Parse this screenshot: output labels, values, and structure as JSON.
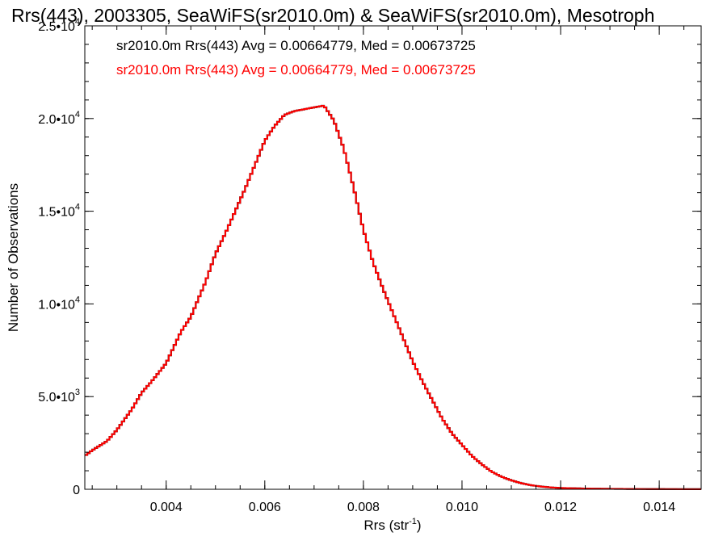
{
  "chart_data": {
    "type": "line",
    "title": "Rrs(443), 2003305, SeaWiFS(sr2010.0m) & SeaWiFS(sr2010.0m), Mesotroph",
    "xlabel_main": "Rrs (str",
    "xlabel_sup": "-1",
    "xlabel_end": ")",
    "ylabel": "Number of Observations",
    "xlim": [
      0.00235,
      0.01485
    ],
    "ylim": [
      0,
      25000
    ],
    "x_ticks": [
      {
        "value": 0.004,
        "label": "0.004"
      },
      {
        "value": 0.006,
        "label": "0.006"
      },
      {
        "value": 0.008,
        "label": "0.008"
      },
      {
        "value": 0.01,
        "label": "0.010"
      },
      {
        "value": 0.012,
        "label": "0.012"
      },
      {
        "value": 0.014,
        "label": "0.014"
      }
    ],
    "y_ticks": [
      {
        "value": 0,
        "mant": "0",
        "exp": ""
      },
      {
        "value": 5000,
        "mant": "5.0•10",
        "exp": "3"
      },
      {
        "value": 10000,
        "mant": "1.0•10",
        "exp": "4"
      },
      {
        "value": 15000,
        "mant": "1.5•10",
        "exp": "4"
      },
      {
        "value": 20000,
        "mant": "2.0•10",
        "exp": "4"
      },
      {
        "value": 25000,
        "mant": "2.5•10",
        "exp": "4"
      }
    ],
    "legend": [
      {
        "text": "sr2010.0m Rrs(443) Avg = 0.00664779, Med = 0.00673725",
        "color": "#000000"
      },
      {
        "text": "sr2010.0m Rrs(443) Avg = 0.00664779, Med = 0.00673725",
        "color": "#ff0000"
      }
    ],
    "series": [
      {
        "color": "#000000",
        "x": [
          0.00235,
          0.0025,
          0.0028,
          0.003,
          0.0033,
          0.0035,
          0.0037,
          0.004,
          0.0043,
          0.0045,
          0.0048,
          0.005,
          0.0052,
          0.0054,
          0.0056,
          0.0058,
          0.006,
          0.0062,
          0.0064,
          0.0066,
          0.0068,
          0.007,
          0.0072,
          0.0074,
          0.0076,
          0.0078,
          0.008,
          0.0082,
          0.0084,
          0.0086,
          0.0088,
          0.009,
          0.0092,
          0.0094,
          0.0096,
          0.0098,
          0.01,
          0.0102,
          0.0104,
          0.0106,
          0.0108,
          0.011,
          0.0112,
          0.0114,
          0.0116,
          0.0118,
          0.012,
          0.0125,
          0.013,
          0.0135,
          0.014,
          0.01485
        ],
        "y": [
          1800,
          2100,
          2600,
          3200,
          4300,
          5200,
          5800,
          6800,
          8500,
          9300,
          11200,
          12700,
          13800,
          15000,
          16200,
          17500,
          18800,
          19600,
          20200,
          20400,
          20500,
          20600,
          20700,
          19900,
          18400,
          16300,
          14000,
          12200,
          10800,
          9500,
          8200,
          6900,
          5800,
          4800,
          3800,
          3000,
          2400,
          1800,
          1350,
          950,
          680,
          480,
          330,
          220,
          150,
          100,
          70,
          40,
          25,
          15,
          10,
          5
        ]
      },
      {
        "color": "#ff0000",
        "x": [
          0.00235,
          0.0025,
          0.0028,
          0.003,
          0.0033,
          0.0035,
          0.0037,
          0.004,
          0.0043,
          0.0045,
          0.0048,
          0.005,
          0.0052,
          0.0054,
          0.0056,
          0.0058,
          0.006,
          0.0062,
          0.0064,
          0.0066,
          0.0068,
          0.007,
          0.0072,
          0.0074,
          0.0076,
          0.0078,
          0.008,
          0.0082,
          0.0084,
          0.0086,
          0.0088,
          0.009,
          0.0092,
          0.0094,
          0.0096,
          0.0098,
          0.01,
          0.0102,
          0.0104,
          0.0106,
          0.0108,
          0.011,
          0.0112,
          0.0114,
          0.0116,
          0.0118,
          0.012,
          0.0125,
          0.013,
          0.0135,
          0.014,
          0.01485
        ],
        "y": [
          1800,
          2100,
          2600,
          3200,
          4300,
          5200,
          5800,
          6800,
          8500,
          9300,
          11200,
          12700,
          13800,
          15000,
          16200,
          17500,
          18800,
          19600,
          20200,
          20400,
          20500,
          20600,
          20700,
          19900,
          18400,
          16300,
          14000,
          12200,
          10800,
          9500,
          8200,
          6900,
          5800,
          4800,
          3800,
          3000,
          2400,
          1800,
          1350,
          950,
          680,
          480,
          330,
          220,
          150,
          100,
          70,
          40,
          25,
          15,
          10,
          5
        ]
      }
    ]
  }
}
